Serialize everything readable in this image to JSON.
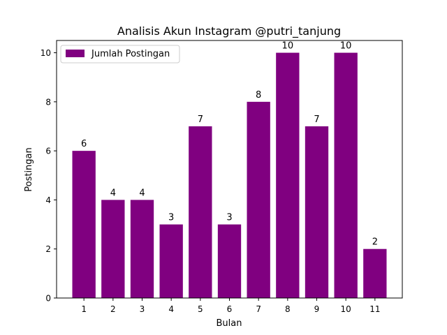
{
  "chart_data": {
    "type": "bar",
    "title": "Analisis Akun Instagram @putri_tanjung",
    "xlabel": "Bulan",
    "ylabel": "Postingan",
    "categories": [
      "1",
      "2",
      "3",
      "4",
      "5",
      "6",
      "7",
      "8",
      "9",
      "10",
      "11"
    ],
    "series": [
      {
        "name": "Jumlah Postingan",
        "values": [
          6,
          4,
          4,
          3,
          7,
          3,
          8,
          10,
          7,
          10,
          2
        ],
        "color": "#800080"
      }
    ],
    "ylim": [
      0,
      10.5
    ],
    "yticks": [
      "0",
      "2",
      "4",
      "6",
      "8",
      "10"
    ],
    "data_labels": [
      "6",
      "4",
      "4",
      "3",
      "7",
      "3",
      "8",
      "10",
      "7",
      "10",
      "2"
    ],
    "legend_position": "upper-left",
    "grid": false
  }
}
